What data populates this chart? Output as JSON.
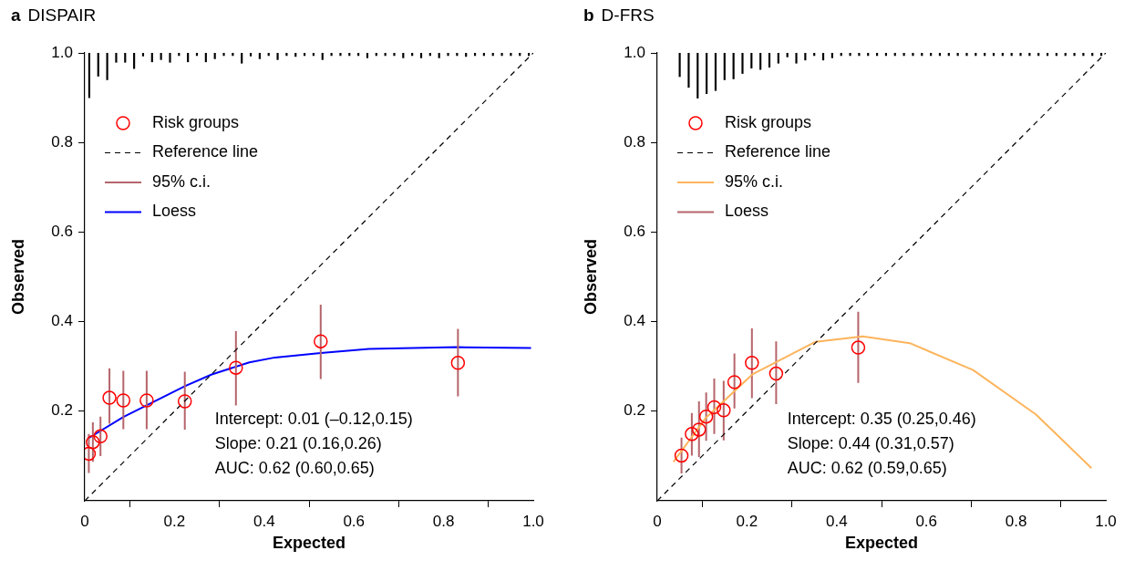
{
  "chart_data": [
    {
      "type": "scatter",
      "title": "a DISPAIR",
      "xlabel": "Expected",
      "ylabel": "Observed",
      "xlim": [
        0,
        1
      ],
      "ylim": [
        0,
        1
      ],
      "xticks": [
        0,
        0.2,
        0.4,
        0.6,
        0.8,
        {
          "value": 1,
          "label": "1.0"
        }
      ],
      "yticks": [
        0.2,
        0.4,
        0.6,
        0.8,
        {
          "value": 1,
          "label": "1.0"
        }
      ],
      "grid": false,
      "legend": "top left",
      "annotations": [
        "Intercept: 0.01 (–0.12,0.15)",
        "Slope: 0.21 (0.16,0.26)",
        "AUC: 0.62 (0.60,0.65)"
      ],
      "series": [
        {
          "type": "bar",
          "color": "#000000",
          "x": [
            0.01,
            0.03,
            0.05,
            0.07,
            0.09,
            0.11,
            0.13,
            0.15,
            0.17,
            0.19,
            0.21,
            0.23,
            0.25,
            0.27,
            0.29,
            0.31,
            0.33,
            0.35,
            0.37,
            0.39,
            0.41,
            0.43,
            0.45,
            0.47,
            0.49,
            0.51,
            0.53,
            0.55,
            0.57,
            0.59,
            0.61,
            0.63,
            0.65,
            0.67,
            0.69,
            0.71,
            0.73,
            0.75,
            0.77,
            0.79,
            0.81,
            0.83,
            0.85,
            0.87,
            0.89,
            0.91,
            0.93,
            0.95,
            0.97,
            0.99
          ],
          "base": [
            1,
            1,
            1,
            1,
            1,
            1,
            1,
            1,
            1,
            1,
            1,
            1,
            1,
            1,
            1,
            1,
            1,
            1,
            1,
            1,
            1,
            1,
            1,
            1,
            1,
            1,
            1,
            1,
            1,
            1,
            1,
            1,
            1,
            1,
            1,
            1,
            1,
            1,
            1,
            1,
            1,
            1,
            1,
            1,
            1,
            1,
            1,
            1,
            1,
            1
          ],
          "values": [
            -0.1,
            -0.052,
            -0.06,
            -0.021,
            -0.021,
            -0.035,
            -0.007,
            -0.02,
            -0.015,
            -0.021,
            -0.006,
            -0.02,
            -0.006,
            -0.02,
            -0.013,
            -0.006,
            -0.006,
            -0.023,
            -0.007,
            -0.013,
            -0.006,
            -0.015,
            -0.006,
            -0.008,
            -0.006,
            -0.006,
            -0.015,
            -0.006,
            -0.006,
            -0.006,
            -0.006,
            -0.011,
            -0.006,
            -0.006,
            -0.006,
            -0.011,
            -0.006,
            -0.011,
            -0.006,
            -0.011,
            -0.006,
            -0.006,
            -0.008,
            -0.006,
            -0.006,
            -0.006,
            -0.006,
            -0.006,
            -0.006,
            -0.006
          ]
        },
        {
          "name": "Risk groups",
          "marker": "circle",
          "color": "#ff0000",
          "x": [
            0.009,
            0.018,
            0.035,
            0.055,
            0.086,
            0.138,
            0.223,
            0.337,
            0.526,
            0.832
          ],
          "values": [
            0.105,
            0.131,
            0.144,
            0.23,
            0.224,
            0.224,
            0.222,
            0.297,
            0.356,
            0.308
          ]
        },
        {
          "name": "Reference line",
          "type": "line",
          "line_style": "dashed",
          "color": "#000000",
          "x": [
            0,
            1
          ],
          "values": [
            0,
            1
          ]
        },
        {
          "name": "95% c.i.",
          "type": "line",
          "line_style": "solid",
          "color": "#b5656b",
          "x": [
            0.009,
            0.009,
            null,
            0.018,
            0.018,
            null,
            0.035,
            0.035,
            null,
            0.055,
            0.055,
            null,
            0.086,
            0.086,
            null,
            0.138,
            0.138,
            null,
            0.223,
            0.223,
            null,
            0.337,
            0.337,
            null,
            0.526,
            0.526,
            null,
            0.832,
            0.832
          ],
          "values": [
            0.062,
            0.149,
            null,
            0.087,
            0.175,
            null,
            0.1,
            0.188,
            null,
            0.172,
            0.296,
            null,
            0.16,
            0.29,
            null,
            0.16,
            0.29,
            null,
            0.159,
            0.288,
            null,
            0.213,
            0.379,
            null,
            0.272,
            0.438,
            null,
            0.233,
            0.384
          ]
        },
        {
          "name": "Loess",
          "type": "line",
          "line_style": "solid",
          "color": "#0000ff",
          "x": [
            0.007,
            0.086,
            0.223,
            0.283,
            0.367,
            0.424,
            0.526,
            0.634,
            0.83,
            0.995
          ],
          "values": [
            0.139,
            0.187,
            0.256,
            0.282,
            0.309,
            0.32,
            0.33,
            0.339,
            0.343,
            0.341
          ]
        }
      ]
    },
    {
      "type": "scatter",
      "title": "b D-FRS",
      "xlabel": "Expected",
      "ylabel": "Observed",
      "xlim": [
        0,
        1
      ],
      "ylim": [
        0,
        1
      ],
      "xticks": [
        0,
        0.2,
        0.4,
        0.6,
        0.8,
        {
          "value": 1,
          "label": "1.0"
        }
      ],
      "yticks": [
        0.2,
        0.4,
        0.6,
        0.8,
        {
          "value": 1,
          "label": "1.0"
        }
      ],
      "grid": false,
      "legend": "top left",
      "annotations": [
        "Intercept: 0.35 (0.25,0.46)",
        "Slope: 0.44 (0.31,0.57)",
        "AUC: 0.62 (0.59,0.65)"
      ],
      "series": [
        {
          "type": "bar",
          "color": "#000000",
          "x": [
            0.05,
            0.07,
            0.09,
            0.11,
            0.13,
            0.15,
            0.17,
            0.19,
            0.21,
            0.23,
            0.25,
            0.27,
            0.29,
            0.31,
            0.33,
            0.35,
            0.37,
            0.39,
            0.41,
            0.43,
            0.45,
            0.47,
            0.49,
            0.51,
            0.53,
            0.55,
            0.57,
            0.59,
            0.61,
            0.63,
            0.65,
            0.67,
            0.69,
            0.71,
            0.73,
            0.75,
            0.77,
            0.79,
            0.81,
            0.83,
            0.85,
            0.87,
            0.89,
            0.91,
            0.93,
            0.95,
            0.97,
            0.99
          ],
          "base": [
            1,
            1,
            1,
            1,
            1,
            1,
            1,
            1,
            1,
            1,
            1,
            1,
            1,
            1,
            1,
            1,
            1,
            1,
            1,
            1,
            1,
            1,
            1,
            1,
            1,
            1,
            1,
            1,
            1,
            1,
            1,
            1,
            1,
            1,
            1,
            1,
            1,
            1,
            1,
            1,
            1,
            1,
            1,
            1,
            1,
            1,
            1,
            1
          ],
          "values": [
            -0.053,
            -0.077,
            -0.101,
            -0.091,
            -0.084,
            -0.06,
            -0.058,
            -0.046,
            -0.034,
            -0.037,
            -0.032,
            -0.023,
            -0.009,
            -0.023,
            -0.016,
            -0.006,
            -0.016,
            -0.011,
            -0.006,
            -0.006,
            -0.006,
            -0.006,
            -0.006,
            -0.006,
            -0.006,
            -0.006,
            -0.006,
            -0.006,
            -0.006,
            -0.006,
            -0.006,
            -0.006,
            -0.006,
            -0.006,
            -0.006,
            -0.006,
            -0.006,
            -0.006,
            -0.006,
            -0.006,
            -0.006,
            -0.006,
            -0.006,
            -0.006,
            -0.006,
            -0.006,
            -0.006,
            -0.006
          ]
        },
        {
          "name": "Risk groups",
          "marker": "circle",
          "color": "#ff0000",
          "x": [
            0.054,
            0.077,
            0.093,
            0.109,
            0.127,
            0.148,
            0.172,
            0.211,
            0.265,
            0.448
          ],
          "values": [
            0.101,
            0.149,
            0.159,
            0.188,
            0.209,
            0.202,
            0.265,
            0.308,
            0.284,
            0.342
          ]
        },
        {
          "name": "Reference line",
          "type": "line",
          "line_style": "dashed",
          "color": "#000000",
          "x": [
            0,
            1
          ],
          "values": [
            0,
            1
          ]
        },
        {
          "name": "95% c.i.",
          "type": "line",
          "line_style": "solid",
          "color": "#fdb45c",
          "x": [
            0.036,
            0.109,
            0.213,
            0.353,
            0.458,
            0.563,
            0.704,
            0.844,
            0.968
          ],
          "values": [
            0.087,
            0.186,
            0.283,
            0.355,
            0.367,
            0.352,
            0.292,
            0.193,
            0.073
          ]
        },
        {
          "name": "Loess",
          "type": "line",
          "line_style": "solid",
          "color": "#b5656b",
          "x": [
            0.054,
            0.054,
            null,
            0.077,
            0.077,
            null,
            0.093,
            0.093,
            null,
            0.109,
            0.109,
            null,
            0.127,
            0.127,
            null,
            0.148,
            0.148,
            null,
            0.172,
            0.172,
            null,
            0.211,
            0.211,
            null,
            0.265,
            0.265,
            null,
            0.448,
            0.448
          ],
          "values": [
            0.061,
            0.141,
            null,
            0.101,
            0.196,
            null,
            0.098,
            0.222,
            null,
            0.134,
            0.242,
            null,
            0.149,
            0.273,
            null,
            0.135,
            0.268,
            null,
            0.206,
            0.329,
            null,
            0.229,
            0.385,
            null,
            0.216,
            0.356,
            null,
            0.263,
            0.422
          ]
        }
      ]
    }
  ]
}
